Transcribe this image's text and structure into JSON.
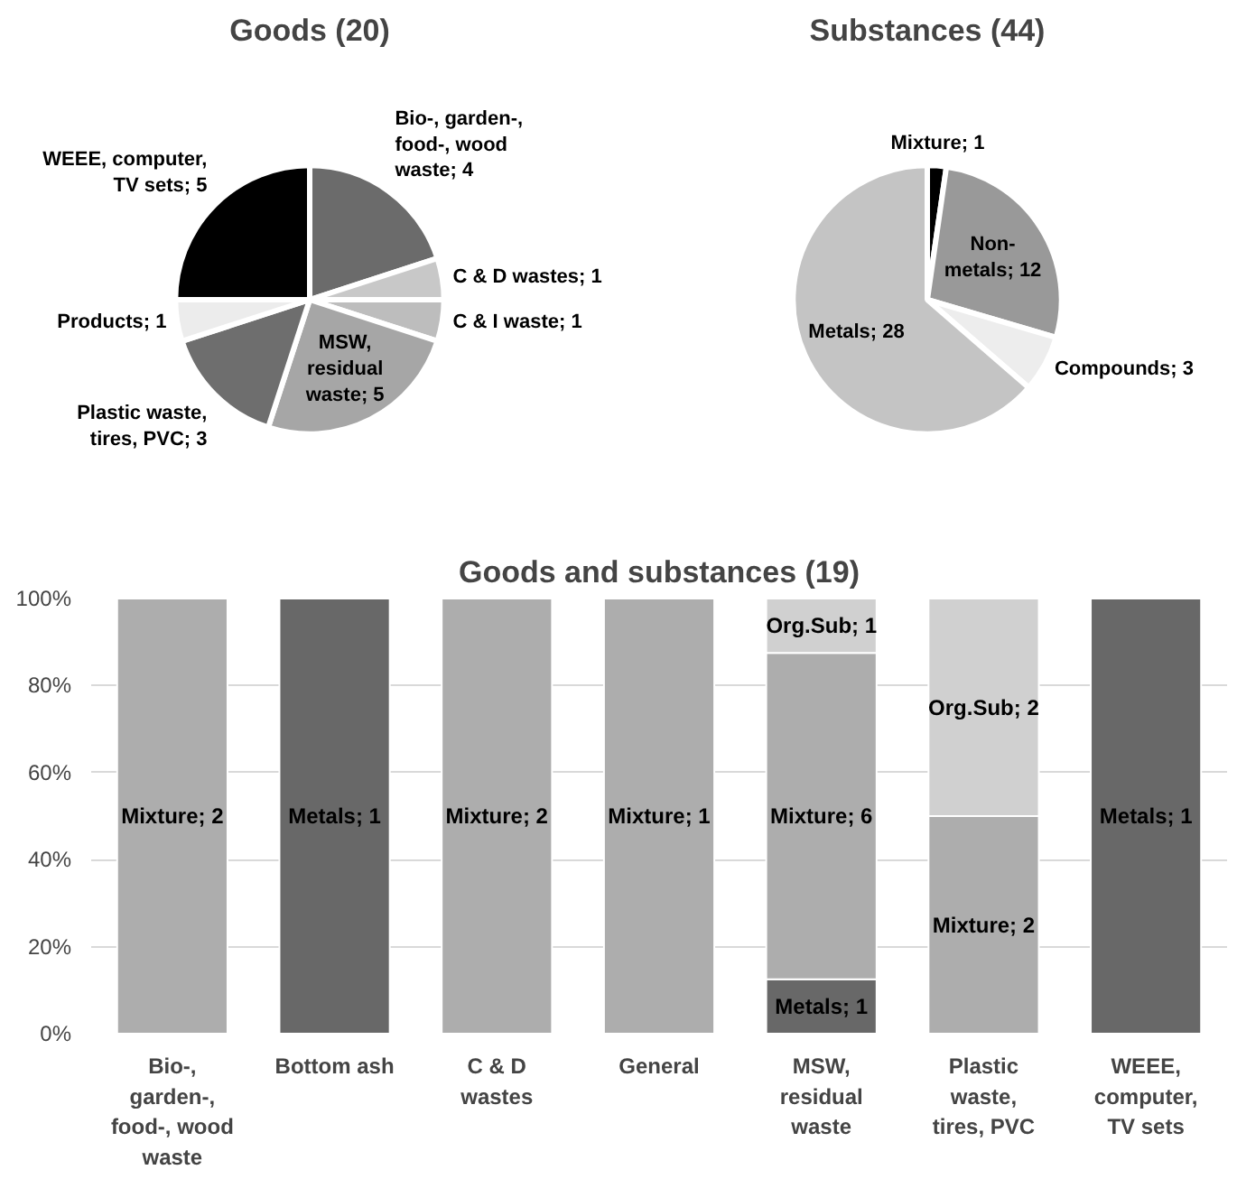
{
  "chart_data": [
    {
      "type": "pie",
      "title": "Goods (20)",
      "categories": [
        null,
        null,
        null,
        null,
        null,
        null,
        null
      ],
      "values": [
        4,
        1,
        1,
        5,
        3,
        1,
        5
      ],
      "colors": [
        "#6b6b6b",
        "#c8c8c8",
        "#bdbdbd",
        "#a6a6a6",
        "#6e6e6e",
        "#ececec",
        "#000000"
      ],
      "value_labels": [
        "Bio-, garden-, food-, wood waste; 4",
        "C & D wastes; 1",
        "C & I waste; 1",
        "MSW, residual waste; 5",
        "Plastic waste, tires, PVC; 3",
        "Products; 1",
        "WEEE, computer, TV sets; 5"
      ]
    },
    {
      "type": "pie",
      "title": "Substances (44)",
      "categories": [
        null,
        null,
        null,
        null
      ],
      "values": [
        1,
        12,
        3,
        28
      ],
      "colors": [
        "#000000",
        "#999999",
        "#ededed",
        "#c4c4c4"
      ],
      "value_labels": [
        "Mixture; 1",
        "Non-metals; 12",
        "Compounds; 3",
        "Metals; 28"
      ]
    },
    {
      "type": "bar",
      "title": "Goods and substances (19)",
      "stacked": true,
      "categories": [
        "Bio-, garden-, food-, wood waste",
        "Bottom ash",
        "C & D wastes",
        "General",
        "MSW, residual waste",
        "Plastic waste, tires, PVC",
        "WEEE, computer, TV sets"
      ],
      "series": [
        {
          "color": "#686868",
          "values": [
            null,
            100,
            null,
            null,
            12.5,
            null,
            100
          ]
        },
        {
          "color": "#adadad",
          "values": [
            100,
            null,
            100,
            100,
            75,
            50,
            null
          ]
        },
        {
          "color": "#d0d0d0",
          "values": [
            null,
            null,
            null,
            null,
            12.5,
            50,
            null
          ]
        }
      ],
      "annotations": [
        "Mixture; 2",
        "Metals; 1",
        "Mixture; 2",
        "Mixture; 1",
        "Metals; 1",
        "Mixture; 6",
        "Org.Sub; 1",
        "Mixture; 2",
        "Org.Sub; 2",
        "Metals; 1"
      ],
      "ylim": [
        0,
        100
      ],
      "yticks": [
        {
          "value": 0,
          "label": "0%"
        },
        {
          "value": 20,
          "label": "20%"
        },
        {
          "value": 40,
          "label": "40%"
        },
        {
          "value": 60,
          "label": "60%"
        },
        {
          "value": 80,
          "label": "80%"
        },
        {
          "value": 100,
          "label": "100%"
        }
      ],
      "grid": "y"
    }
  ]
}
